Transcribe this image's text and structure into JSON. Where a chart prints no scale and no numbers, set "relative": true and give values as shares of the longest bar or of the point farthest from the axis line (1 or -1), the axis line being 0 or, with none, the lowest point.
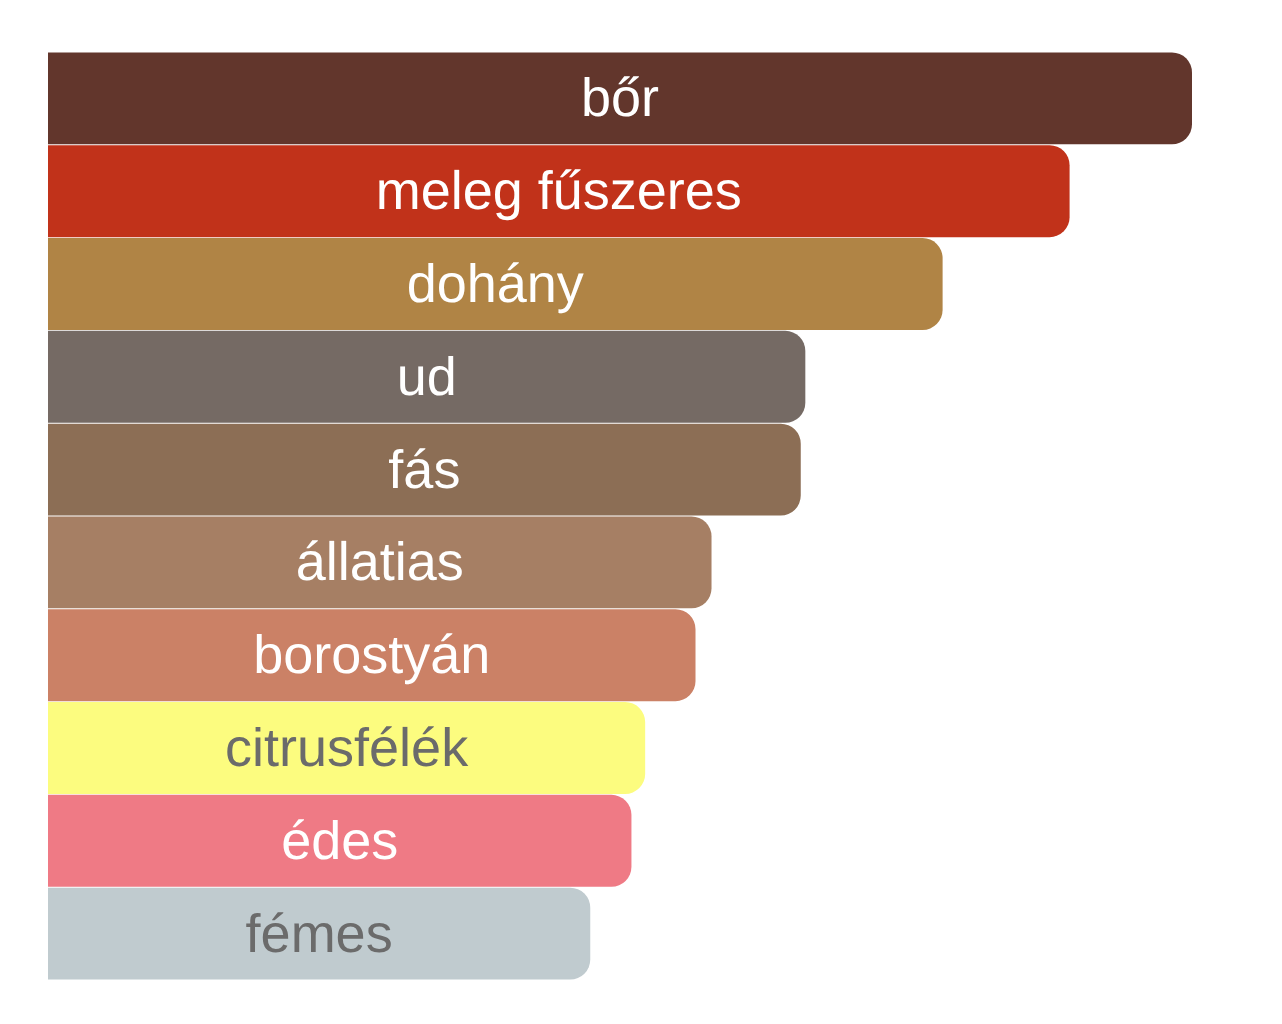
{
  "chart_data": {
    "type": "bar",
    "orientation": "horizontal",
    "relative": true,
    "categories": [
      "bőr",
      "meleg fűszeres",
      "dohány",
      "ud",
      "fás",
      "állatias",
      "borostyán",
      "citrusfélék",
      "édes",
      "fémes"
    ],
    "values": [
      1,
      0.893,
      0.782,
      0.662,
      0.658,
      0.58,
      0.566,
      0.522,
      0.51,
      0.474
    ],
    "colors": [
      "#62362c",
      "#c1321a",
      "#b08445",
      "#756a64",
      "#8c6e55",
      "#a67f64",
      "#cb8166",
      "#fcfc7f",
      "#ef7a85",
      "#c0cbcf"
    ]
  }
}
